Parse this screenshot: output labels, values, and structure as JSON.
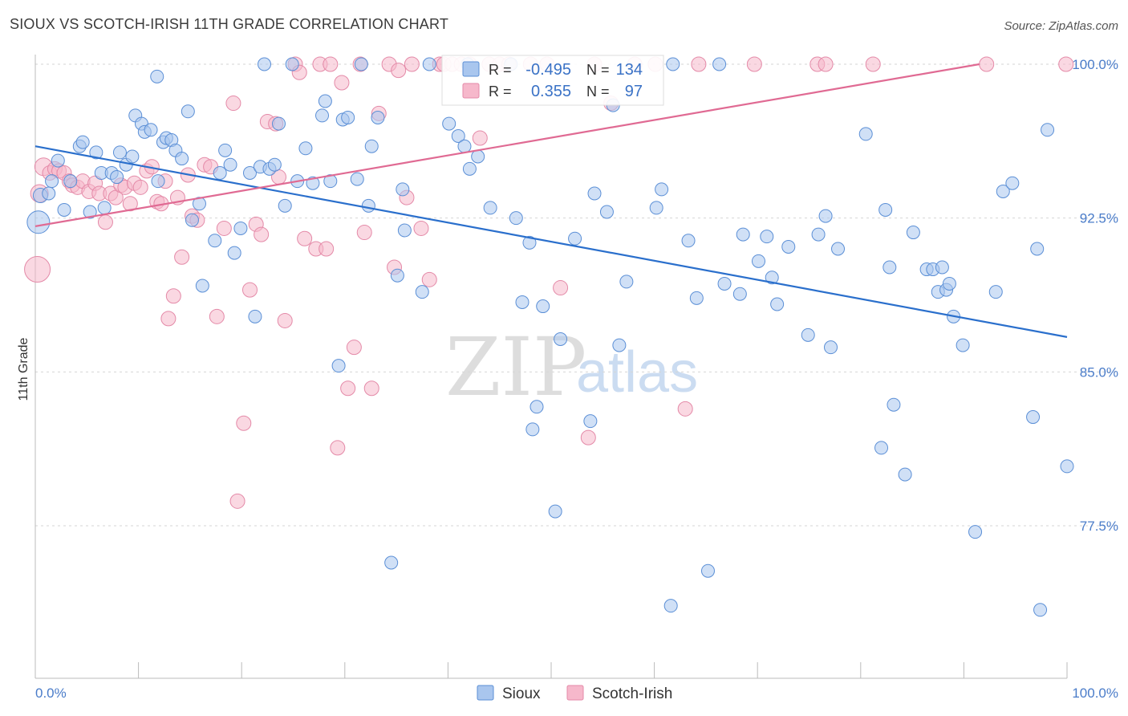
{
  "title": "SIOUX VS SCOTCH-IRISH 11TH GRADE CORRELATION CHART",
  "source": "Source: ZipAtlas.com",
  "colors": {
    "sioux_fill": "#a9c6ee",
    "sioux_stroke": "#5b8fd6",
    "sioux_line": "#2a6fcc",
    "scotch_fill": "#f6b8cb",
    "scotch_stroke": "#e48aa8",
    "scotch_line": "#e06a93",
    "tick_label": "#4a7cc9",
    "grid": "#d5d5d5"
  },
  "legend": {
    "rows": [
      {
        "r_label": "R =",
        "r_value": "-0.495",
        "n_label": "N =",
        "n_value": "134"
      },
      {
        "r_label": "R =",
        "r_value": "0.355",
        "n_label": "N =",
        "n_value": "97"
      }
    ]
  },
  "bottom_legend": [
    "Sioux",
    "Scotch-Irish"
  ],
  "watermark": {
    "zip": "ZIP",
    "atlas": "atlas"
  },
  "chart_data": {
    "type": "scatter",
    "title": "SIOUX VS SCOTCH-IRISH 11TH GRADE CORRELATION CHART",
    "xlabel": "",
    "ylabel": "11th Grade",
    "xlim": [
      0,
      100
    ],
    "ylim": [
      72.5,
      101
    ],
    "x_tick_labels": [
      "0.0%",
      "100.0%"
    ],
    "y_ticks": [
      77.5,
      85.0,
      92.5,
      100.0
    ],
    "y_tick_labels": [
      "77.5%",
      "85.0%",
      "92.5%",
      "100.0%"
    ],
    "grid": "horizontal dashed",
    "legend_placement": "top-center",
    "series": [
      {
        "name": "Sioux",
        "r": -0.495,
        "n": 134,
        "trend": {
          "x": [
            0,
            100
          ],
          "y": [
            96.0,
            86.7
          ]
        },
        "points": [
          [
            0.3,
            92.3,
            14
          ],
          [
            0.5,
            93.6,
            9
          ],
          [
            1.3,
            93.7,
            8
          ],
          [
            1.6,
            94.3,
            8
          ],
          [
            2.2,
            95.3,
            8
          ],
          [
            2.8,
            92.9,
            8
          ],
          [
            3.4,
            94.3,
            8
          ],
          [
            4.3,
            96.0,
            8
          ],
          [
            4.6,
            96.2,
            8
          ],
          [
            5.3,
            92.8,
            8
          ],
          [
            5.9,
            95.7,
            8
          ],
          [
            6.4,
            94.7,
            8
          ],
          [
            6.7,
            93.0,
            8
          ],
          [
            7.4,
            94.7,
            8
          ],
          [
            7.9,
            94.5,
            8
          ],
          [
            8.2,
            95.7,
            8
          ],
          [
            8.8,
            95.1,
            8
          ],
          [
            9.4,
            95.5,
            8
          ],
          [
            9.7,
            97.5,
            8
          ],
          [
            10.3,
            97.1,
            8
          ],
          [
            10.6,
            96.7,
            8
          ],
          [
            11.2,
            96.8,
            8
          ],
          [
            11.9,
            94.3,
            8
          ],
          [
            12.4,
            96.2,
            8
          ],
          [
            12.7,
            96.4,
            8
          ],
          [
            13.2,
            96.3,
            8
          ],
          [
            13.6,
            95.8,
            8
          ],
          [
            14.2,
            95.4,
            8
          ],
          [
            14.8,
            97.7,
            8
          ],
          [
            15.2,
            92.4,
            8
          ],
          [
            15.9,
            93.2,
            8
          ],
          [
            11.8,
            99.4,
            8
          ],
          [
            16.2,
            89.2,
            8
          ],
          [
            17.4,
            91.4,
            8
          ],
          [
            17.9,
            94.7,
            8
          ],
          [
            18.4,
            95.8,
            8
          ],
          [
            18.9,
            95.1,
            8
          ],
          [
            19.3,
            90.8,
            8
          ],
          [
            19.9,
            92.0,
            8
          ],
          [
            20.8,
            94.7,
            8
          ],
          [
            21.3,
            87.7,
            8
          ],
          [
            21.8,
            95.0,
            8
          ],
          [
            22.2,
            100.0,
            8
          ],
          [
            22.7,
            94.9,
            8
          ],
          [
            23.2,
            95.1,
            8
          ],
          [
            23.6,
            97.1,
            8
          ],
          [
            24.2,
            93.1,
            8
          ],
          [
            24.9,
            100.0,
            8
          ],
          [
            25.4,
            94.3,
            8
          ],
          [
            26.2,
            95.9,
            8
          ],
          [
            26.9,
            94.2,
            8
          ],
          [
            27.8,
            97.5,
            8
          ],
          [
            28.1,
            98.2,
            8
          ],
          [
            28.6,
            94.3,
            8
          ],
          [
            29.4,
            85.3,
            8
          ],
          [
            29.8,
            97.3,
            8
          ],
          [
            30.3,
            97.4,
            8
          ],
          [
            31.2,
            94.4,
            8
          ],
          [
            31.6,
            100.0,
            8
          ],
          [
            32.3,
            93.1,
            8
          ],
          [
            32.6,
            96.0,
            8
          ],
          [
            33.2,
            97.4,
            8
          ],
          [
            34.5,
            75.7,
            8
          ],
          [
            35.1,
            89.7,
            8
          ],
          [
            35.6,
            93.9,
            8
          ],
          [
            35.8,
            91.9,
            8
          ],
          [
            37.5,
            88.9,
            8
          ],
          [
            38.2,
            100.0,
            8
          ],
          [
            40.1,
            97.1,
            8
          ],
          [
            41.9,
            100.0,
            8
          ],
          [
            41.0,
            96.5,
            8
          ],
          [
            41.6,
            96.0,
            8
          ],
          [
            42.1,
            94.9,
            8
          ],
          [
            42.9,
            95.5,
            8
          ],
          [
            44.1,
            93.0,
            8
          ],
          [
            46.1,
            100.0,
            8
          ],
          [
            46.6,
            92.5,
            8
          ],
          [
            47.2,
            88.4,
            8
          ],
          [
            47.9,
            91.3,
            8
          ],
          [
            48.2,
            82.2,
            8
          ],
          [
            48.6,
            83.3,
            8
          ],
          [
            49.2,
            88.2,
            8
          ],
          [
            50.4,
            78.2,
            8
          ],
          [
            50.9,
            86.6,
            8
          ],
          [
            52.3,
            91.5,
            8
          ],
          [
            53.8,
            82.6,
            8
          ],
          [
            54.2,
            93.7,
            8
          ],
          [
            55.4,
            92.8,
            8
          ],
          [
            56.0,
            98.0,
            8
          ],
          [
            56.6,
            86.3,
            8
          ],
          [
            57.3,
            89.4,
            8
          ],
          [
            60.2,
            93.0,
            8
          ],
          [
            60.7,
            93.9,
            8
          ],
          [
            61.8,
            100.0,
            8
          ],
          [
            61.6,
            73.6,
            8
          ],
          [
            63.3,
            91.4,
            8
          ],
          [
            64.1,
            88.6,
            8
          ],
          [
            65.2,
            75.3,
            8
          ],
          [
            66.3,
            100.0,
            8
          ],
          [
            66.8,
            89.3,
            8
          ],
          [
            68.3,
            88.8,
            8
          ],
          [
            68.6,
            91.7,
            8
          ],
          [
            70.1,
            90.4,
            8
          ],
          [
            70.9,
            91.6,
            8
          ],
          [
            71.4,
            89.6,
            8
          ],
          [
            71.9,
            88.3,
            8
          ],
          [
            73.0,
            91.1,
            8
          ],
          [
            74.9,
            86.8,
            8
          ],
          [
            75.9,
            91.7,
            8
          ],
          [
            76.6,
            92.6,
            8
          ],
          [
            77.1,
            86.2,
            8
          ],
          [
            77.8,
            91.0,
            8
          ],
          [
            80.5,
            96.6,
            8
          ],
          [
            82.4,
            92.9,
            8
          ],
          [
            82.8,
            90.1,
            8
          ],
          [
            83.2,
            83.4,
            8
          ],
          [
            82.0,
            81.3,
            8
          ],
          [
            84.3,
            80.0,
            8
          ],
          [
            85.1,
            91.8,
            8
          ],
          [
            86.4,
            90.0,
            8
          ],
          [
            87.0,
            90.0,
            8
          ],
          [
            87.5,
            88.9,
            8
          ],
          [
            87.9,
            90.1,
            8
          ],
          [
            88.3,
            89.0,
            8
          ],
          [
            88.6,
            89.3,
            8
          ],
          [
            89.0,
            87.7,
            8
          ],
          [
            89.9,
            86.3,
            8
          ],
          [
            91.1,
            77.2,
            8
          ],
          [
            93.1,
            88.9,
            8
          ],
          [
            93.8,
            93.8,
            8
          ],
          [
            94.7,
            94.2,
            8
          ],
          [
            96.7,
            82.8,
            8
          ],
          [
            97.1,
            91.0,
            8
          ],
          [
            97.4,
            73.4,
            8
          ],
          [
            98.1,
            96.8,
            8
          ],
          [
            100.0,
            80.4,
            8
          ]
        ]
      },
      {
        "name": "Scotch-Irish",
        "r": 0.355,
        "n": 97,
        "trend": {
          "x": [
            0,
            91.5
          ],
          "y": [
            92.1,
            100.0
          ]
        },
        "points": [
          [
            0.2,
            90.0,
            16
          ],
          [
            0.4,
            93.7,
            11
          ],
          [
            0.8,
            95.0,
            11
          ],
          [
            1.4,
            94.7,
            9
          ],
          [
            1.9,
            94.9,
            9
          ],
          [
            2.3,
            94.8,
            9
          ],
          [
            2.8,
            94.7,
            9
          ],
          [
            3.3,
            94.3,
            9
          ],
          [
            3.6,
            94.1,
            9
          ],
          [
            4.1,
            94.0,
            9
          ],
          [
            4.6,
            94.3,
            9
          ],
          [
            5.2,
            93.8,
            9
          ],
          [
            5.8,
            94.2,
            9
          ],
          [
            6.2,
            93.7,
            9
          ],
          [
            6.8,
            92.3,
            9
          ],
          [
            7.3,
            93.7,
            9
          ],
          [
            7.8,
            93.5,
            9
          ],
          [
            8.3,
            94.1,
            9
          ],
          [
            8.7,
            94.0,
            9
          ],
          [
            9.2,
            93.2,
            9
          ],
          [
            9.6,
            94.2,
            9
          ],
          [
            10.2,
            94.0,
            9
          ],
          [
            10.8,
            94.8,
            9
          ],
          [
            11.3,
            95.0,
            9
          ],
          [
            11.8,
            93.3,
            9
          ],
          [
            12.2,
            93.2,
            9
          ],
          [
            12.6,
            94.3,
            9
          ],
          [
            12.9,
            87.6,
            9
          ],
          [
            13.4,
            88.7,
            9
          ],
          [
            13.8,
            93.5,
            9
          ],
          [
            14.2,
            90.6,
            9
          ],
          [
            14.8,
            94.6,
            9
          ],
          [
            15.2,
            92.6,
            9
          ],
          [
            15.7,
            92.4,
            9
          ],
          [
            16.4,
            95.1,
            9
          ],
          [
            17.0,
            95.0,
            9
          ],
          [
            17.6,
            87.7,
            9
          ],
          [
            18.3,
            92.0,
            9
          ],
          [
            19.2,
            98.1,
            9
          ],
          [
            19.6,
            78.7,
            9
          ],
          [
            20.2,
            82.5,
            9
          ],
          [
            20.8,
            89.0,
            9
          ],
          [
            21.4,
            92.2,
            9
          ],
          [
            21.9,
            91.7,
            9
          ],
          [
            22.5,
            97.2,
            9
          ],
          [
            23.3,
            97.1,
            9
          ],
          [
            23.6,
            94.5,
            9
          ],
          [
            24.2,
            87.5,
            9
          ],
          [
            25.2,
            100.0,
            9
          ],
          [
            25.6,
            99.6,
            9
          ],
          [
            26.1,
            91.5,
            9
          ],
          [
            27.2,
            91.0,
            9
          ],
          [
            27.6,
            100.0,
            9
          ],
          [
            28.2,
            91.0,
            9
          ],
          [
            28.6,
            100.0,
            9
          ],
          [
            29.3,
            81.3,
            9
          ],
          [
            29.7,
            99.1,
            9
          ],
          [
            30.3,
            84.2,
            9
          ],
          [
            30.9,
            86.2,
            9
          ],
          [
            31.5,
            100.0,
            9
          ],
          [
            31.9,
            91.8,
            9
          ],
          [
            32.6,
            84.2,
            9
          ],
          [
            33.3,
            97.6,
            9
          ],
          [
            34.3,
            100.0,
            9
          ],
          [
            34.8,
            90.1,
            9
          ],
          [
            35.2,
            99.7,
            9
          ],
          [
            36.0,
            93.5,
            9
          ],
          [
            36.5,
            100.0,
            9
          ],
          [
            37.4,
            92.0,
            9
          ],
          [
            38.2,
            89.5,
            9
          ],
          [
            39.2,
            100.0,
            9
          ],
          [
            39.6,
            100.0,
            9
          ],
          [
            40.4,
            100.0,
            9
          ],
          [
            41.3,
            100.0,
            9
          ],
          [
            42.1,
            100.0,
            9
          ],
          [
            43.1,
            96.4,
            9
          ],
          [
            44.0,
            100.0,
            9
          ],
          [
            45.0,
            100.0,
            9
          ],
          [
            45.9,
            100.0,
            9
          ],
          [
            48.0,
            100.0,
            9
          ],
          [
            49.6,
            100.0,
            9
          ],
          [
            50.9,
            89.1,
            9
          ],
          [
            53.6,
            81.8,
            9
          ],
          [
            54.2,
            100.0,
            9
          ],
          [
            55.8,
            98.1,
            9
          ],
          [
            58.1,
            100.0,
            9
          ],
          [
            60.1,
            100.0,
            9
          ],
          [
            63.0,
            83.2,
            9
          ],
          [
            64.3,
            100.0,
            9
          ],
          [
            69.7,
            100.0,
            9
          ],
          [
            75.8,
            100.0,
            9
          ],
          [
            76.6,
            100.0,
            9
          ],
          [
            81.2,
            100.0,
            9
          ],
          [
            92.2,
            100.0,
            9
          ],
          [
            99.9,
            100.0,
            9
          ]
        ]
      }
    ]
  }
}
